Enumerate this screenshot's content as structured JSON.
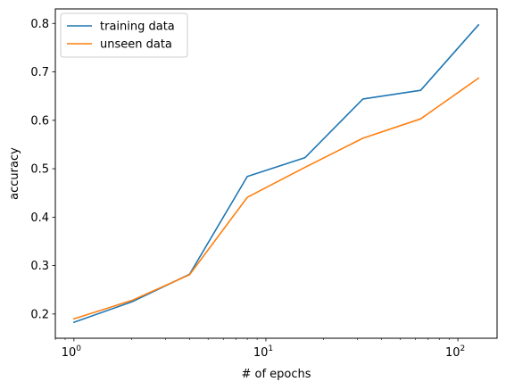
{
  "chart_data": {
    "type": "line",
    "xscale": "log",
    "xlabel": "# of epochs",
    "ylabel": "accuracy",
    "xlim": [
      0.8,
      160
    ],
    "ylim": [
      0.15,
      0.83
    ],
    "x_ticks": [
      {
        "value": 1,
        "base": "10",
        "exp": "0"
      },
      {
        "value": 10,
        "base": "10",
        "exp": "1"
      },
      {
        "value": 100,
        "base": "10",
        "exp": "2"
      }
    ],
    "y_ticks": [
      0.2,
      0.3,
      0.4,
      0.5,
      0.6,
      0.7,
      0.8
    ],
    "y_tick_labels": [
      "0.2",
      "0.3",
      "0.4",
      "0.5",
      "0.6",
      "0.7",
      "0.8"
    ],
    "legend_position": "top-left",
    "grid": false,
    "x": [
      1,
      2,
      4,
      8,
      16,
      32,
      64,
      128
    ],
    "series": [
      {
        "name": "training data",
        "color": "#1f77b4",
        "values": [
          0.183,
          0.225,
          0.282,
          0.484,
          0.523,
          0.644,
          0.662,
          0.797
        ]
      },
      {
        "name": "unseen data",
        "color": "#ff7f0e",
        "values": [
          0.19,
          0.228,
          0.281,
          0.441,
          0.503,
          0.563,
          0.603,
          0.687
        ]
      }
    ]
  }
}
